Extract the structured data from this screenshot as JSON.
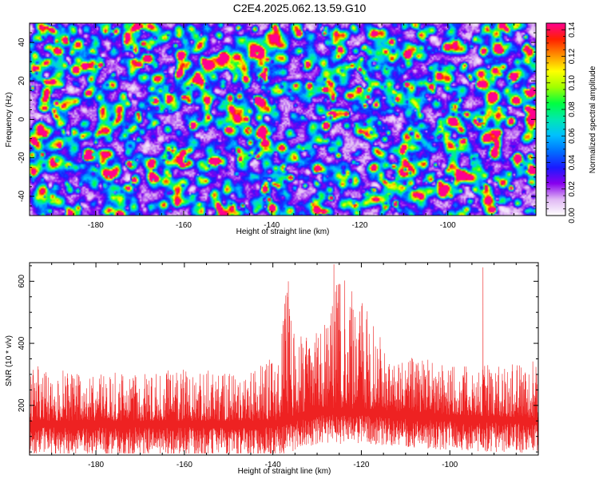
{
  "figure": {
    "title": "C2E4.2025.062.13.59.G10"
  },
  "chart_data": [
    {
      "type": "heatmap",
      "title": "C2E4.2025.062.13.59.G10",
      "xlabel": "Height of straight line (km)",
      "ylabel": "Frequency (Hz)",
      "xlim": [
        -195,
        -80
      ],
      "ylim": [
        -50,
        50
      ],
      "xticks": [
        -180,
        -160,
        -140,
        -120,
        -100
      ],
      "yticks": [
        -40,
        -20,
        0,
        20,
        40
      ],
      "colorbar": {
        "label": "Normalized spectral amplitude",
        "range": [
          0,
          0.145
        ],
        "ticks": [
          0,
          0.02,
          0.04,
          0.06,
          0.08,
          0.1,
          0.12,
          0.14
        ],
        "tick_labels": [
          "0.00",
          "0.02",
          "0.04",
          "0.06",
          "0.08",
          "0.10",
          "0.12",
          "0.14"
        ],
        "colors": [
          "#ffffff",
          "#e0b8f4",
          "#8800ee",
          "#1a1aff",
          "#0070ff",
          "#00c0ff",
          "#00e8b0",
          "#00ff40",
          "#a0ff00",
          "#ffff00",
          "#ff9000",
          "#ff2000",
          "#ff0090"
        ]
      },
      "background_level": 0.025,
      "peak_amplitude": 0.14
    },
    {
      "type": "line",
      "xlabel": "Height of straight line (km)",
      "ylabel": "SNR (10 * v/v)",
      "xlim": [
        -195,
        -80
      ],
      "ylim": [
        40,
        660
      ],
      "xticks": [
        -180,
        -160,
        -140,
        -120,
        -100
      ],
      "yticks": [
        200,
        400,
        600
      ],
      "series": [
        {
          "color": "#ee2222",
          "envelope": {
            "x": [
              -195,
              -190,
              -180,
              -170,
              -160,
              -150,
              -145,
              -140,
              -137,
              -135,
              -130,
              -125,
              -120,
              -115,
              -110,
              -100,
              -90,
              -80
            ],
            "y": [
              330,
              320,
              300,
              300,
              320,
              300,
              320,
              350,
              600,
              420,
              440,
              640,
              560,
              400,
              360,
              330,
              330,
              340
            ]
          },
          "base": {
            "x": [
              -195,
              -180,
              -160,
              -140,
              -137,
              -130,
              -120,
              -100,
              -80
            ],
            "y": [
              150,
              150,
              150,
              150,
              160,
              190,
              190,
              170,
              160
            ]
          },
          "spikes": [
            {
              "x": -136.5,
              "y": 600
            },
            {
              "x": -126.2,
              "y": 655
            },
            {
              "x": -124.8,
              "y": 590
            },
            {
              "x": -92.5,
              "y": 645
            }
          ]
        }
      ]
    }
  ]
}
